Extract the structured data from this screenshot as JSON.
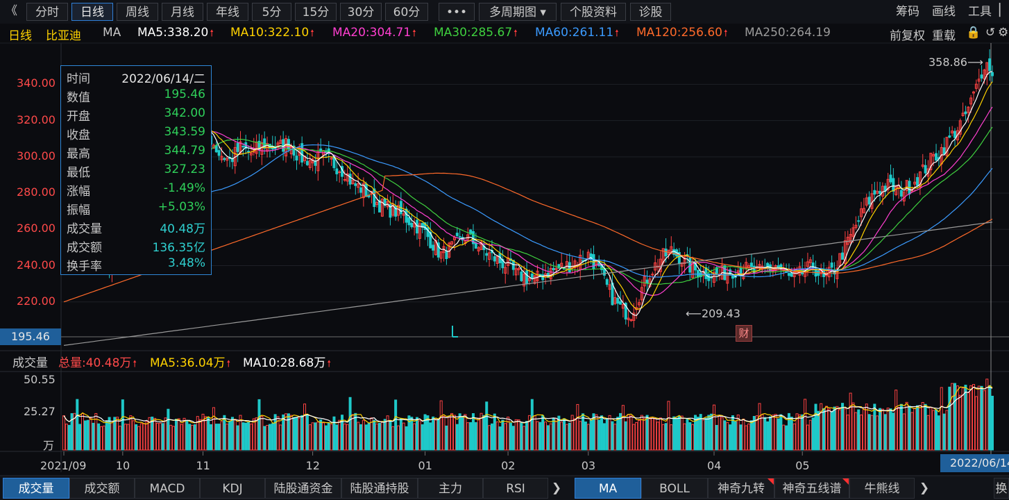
{
  "toolbar": {
    "back_glyph": "《",
    "buttons": [
      "分时",
      "日线",
      "周线",
      "月线",
      "年线",
      "5分",
      "15分",
      "30分",
      "60分",
      "•••",
      "多周期图",
      "个股资料",
      "诊股"
    ],
    "active_index": 1,
    "right_tools": [
      "筹码",
      "画线",
      "工具"
    ]
  },
  "infoline": {
    "period": "日线",
    "stock_name": "比亚迪",
    "indicator": "MA",
    "ma5": "MA5:338.20",
    "ma10": "MA10:322.10",
    "ma20": "MA20:304.71",
    "ma30": "MA30:285.67",
    "ma60": "MA60:261.11",
    "ma120": "MA120:256.60",
    "ma250": "MA250:264.19",
    "adjust": "前复权",
    "overlay": "重载",
    "colors": {
      "ma5": "#ffffff",
      "ma10": "#ffd200",
      "ma20": "#ff3fd0",
      "ma30": "#3fd03f",
      "ma60": "#3b9bff",
      "ma120": "#ff6a2a",
      "ma250": "#9a9a9a"
    }
  },
  "tooltip": {
    "rows": [
      {
        "label": "时间",
        "value": "2022/06/14/二",
        "color": "#e6e6e6"
      },
      {
        "label": "数值",
        "value": "195.46",
        "color": "#2fd05a"
      },
      {
        "label": "开盘",
        "value": "342.00",
        "color": "#2fd05a"
      },
      {
        "label": "收盘",
        "value": "343.59",
        "color": "#2fd05a"
      },
      {
        "label": "最高",
        "value": "344.79",
        "color": "#2fd05a"
      },
      {
        "label": "最低",
        "value": "327.23",
        "color": "#2fd05a"
      },
      {
        "label": "涨幅",
        "value": "-1.49%",
        "color": "#2fd05a"
      },
      {
        "label": "振幅",
        "value": "+5.03%",
        "color": "#2fd05a"
      },
      {
        "label": "成交量",
        "value": "40.48万",
        "color": "#2fd0d0"
      },
      {
        "label": "成交额",
        "value": "136.35亿",
        "color": "#2fd0d0"
      },
      {
        "label": "换手率",
        "value": "3.48%",
        "color": "#2fd0d0"
      }
    ]
  },
  "price_axis": {
    "labels": [
      "340.00",
      "320.00",
      "300.00",
      "280.00",
      "260.00",
      "240.00",
      "220.00"
    ],
    "values": [
      340,
      320,
      300,
      280,
      260,
      240,
      220
    ],
    "current": "195.46"
  },
  "annotations": {
    "high": "358.86",
    "low": "209.43",
    "event_badge": "财"
  },
  "volume_header": {
    "title": "成交量",
    "total": "总量:40.48万",
    "ma5": "MA5:36.04万",
    "ma10": "MA10:28.68万"
  },
  "volume_axis": {
    "labels": [
      "50.55",
      "25.27",
      "万"
    ]
  },
  "x_axis": {
    "labels": [
      "2021/09",
      "10",
      "11",
      "12",
      "01",
      "02",
      "03",
      "04",
      "05"
    ],
    "current_date": "2022/06/14"
  },
  "tabs_left": [
    "成交量",
    "成交额",
    "MACD",
    "KDJ",
    "陆股通资金",
    "陆股通持股",
    "主力",
    "RSI"
  ],
  "tabs_right": [
    {
      "label": "MA",
      "flag": false
    },
    {
      "label": "BOLL",
      "flag": false
    },
    {
      "label": "神奇九转",
      "flag": true
    },
    {
      "label": "神奇五线谱",
      "flag": true
    },
    {
      "label": "牛熊线",
      "flag": false
    }
  ],
  "chart_data": {
    "type": "candlestick",
    "price_ylim": [
      195,
      362
    ],
    "volume_ylim": [
      0,
      55
    ],
    "volume_unit": "万",
    "month_tick_index": [
      0,
      22,
      52,
      93,
      135,
      166,
      196,
      243,
      276
    ],
    "anchors": [
      [
        0,
        268
      ],
      [
        5,
        262
      ],
      [
        12,
        248
      ],
      [
        18,
        240
      ],
      [
        22,
        250
      ],
      [
        25,
        262
      ],
      [
        28,
        270
      ],
      [
        32,
        292
      ],
      [
        36,
        308
      ],
      [
        40,
        312
      ],
      [
        44,
        318
      ],
      [
        48,
        316
      ],
      [
        52,
        316
      ],
      [
        55,
        310
      ],
      [
        58,
        302
      ],
      [
        62,
        298
      ],
      [
        66,
        305
      ],
      [
        70,
        302
      ],
      [
        75,
        307
      ],
      [
        80,
        305
      ],
      [
        84,
        308
      ],
      [
        88,
        300
      ],
      [
        93,
        298
      ],
      [
        97,
        300
      ],
      [
        101,
        296
      ],
      [
        105,
        292
      ],
      [
        108,
        285
      ],
      [
        112,
        282
      ],
      [
        116,
        276
      ],
      [
        120,
        272
      ],
      [
        124,
        270
      ],
      [
        128,
        266
      ],
      [
        132,
        262
      ],
      [
        135,
        258
      ],
      [
        138,
        252
      ],
      [
        141,
        246
      ],
      [
        145,
        250
      ],
      [
        150,
        256
      ],
      [
        154,
        252
      ],
      [
        158,
        247
      ],
      [
        162,
        243
      ],
      [
        166,
        240
      ],
      [
        169,
        235
      ],
      [
        172,
        234
      ],
      [
        176,
        232
      ],
      [
        180,
        236
      ],
      [
        184,
        238
      ],
      [
        188,
        240
      ],
      [
        192,
        243
      ],
      [
        196,
        246
      ],
      [
        199,
        240
      ],
      [
        203,
        228
      ],
      [
        206,
        220
      ],
      [
        209,
        215
      ],
      [
        212,
        214
      ],
      [
        215,
        224
      ],
      [
        219,
        236
      ],
      [
        223,
        244
      ],
      [
        227,
        248
      ],
      [
        231,
        244
      ],
      [
        235,
        238
      ],
      [
        239,
        236
      ],
      [
        243,
        235
      ],
      [
        247,
        236
      ],
      [
        251,
        238
      ],
      [
        255,
        238
      ],
      [
        259,
        236
      ],
      [
        263,
        238
      ],
      [
        266,
        240
      ],
      [
        269,
        236
      ],
      [
        272,
        232
      ],
      [
        276,
        236
      ],
      [
        280,
        240
      ],
      [
        284,
        232
      ],
      [
        288,
        238
      ],
      [
        292,
        250
      ],
      [
        296,
        262
      ],
      [
        300,
        274
      ],
      [
        304,
        282
      ],
      [
        308,
        284
      ],
      [
        312,
        281
      ],
      [
        316,
        284
      ],
      [
        320,
        290
      ],
      [
        324,
        298
      ],
      [
        328,
        304
      ],
      [
        332,
        312
      ],
      [
        336,
        320
      ],
      [
        339,
        330
      ],
      [
        342,
        342
      ],
      [
        344,
        352
      ],
      [
        346,
        350
      ],
      [
        347,
        344
      ]
    ]
  }
}
